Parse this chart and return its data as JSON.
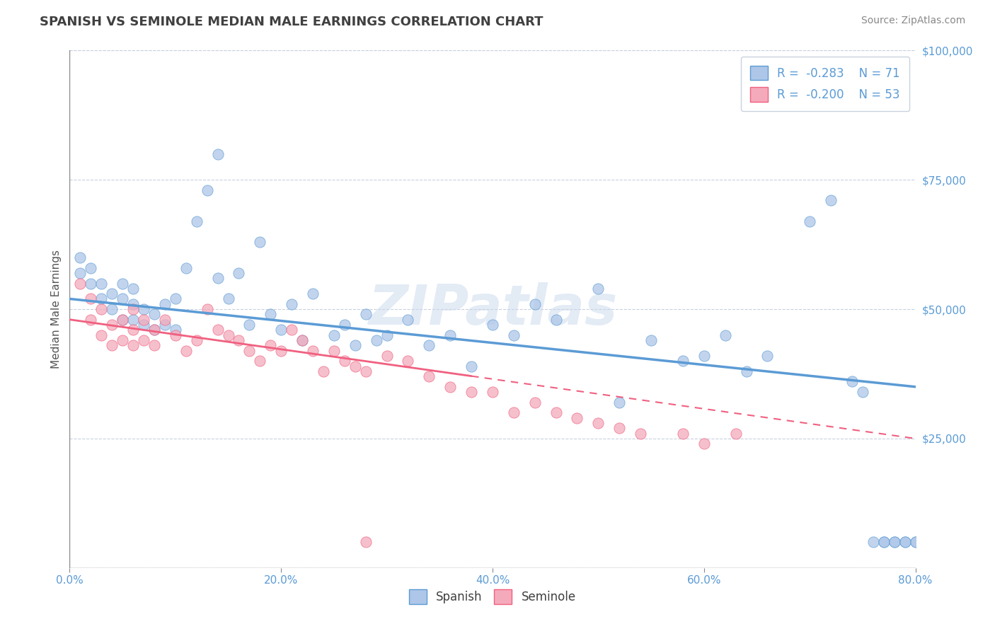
{
  "title": "SPANISH VS SEMINOLE MEDIAN MALE EARNINGS CORRELATION CHART",
  "source": "Source: ZipAtlas.com",
  "ylabel": "Median Male Earnings",
  "spanish_R": -0.283,
  "spanish_N": 71,
  "seminole_R": -0.2,
  "seminole_N": 53,
  "blue_color": "#5b9bd5",
  "blue_light": "#aec6e8",
  "pink_color": "#f06080",
  "pink_light": "#f4aabb",
  "title_color": "#404040",
  "axis_color": "#5b9bd5",
  "watermark_color": "#c8d8ec",
  "xlim": [
    0.0,
    0.8
  ],
  "ylim": [
    0,
    100000
  ],
  "yticks": [
    0,
    25000,
    50000,
    75000,
    100000
  ],
  "ytick_labels": [
    "",
    "$25,000",
    "$50,000",
    "$75,000",
    "$100,000"
  ],
  "xtick_labels": [
    "0.0%",
    "20.0%",
    "40.0%",
    "60.0%",
    "80.0%"
  ],
  "spanish_x": [
    0.01,
    0.01,
    0.02,
    0.02,
    0.03,
    0.03,
    0.04,
    0.04,
    0.05,
    0.05,
    0.05,
    0.06,
    0.06,
    0.06,
    0.07,
    0.07,
    0.08,
    0.08,
    0.09,
    0.09,
    0.1,
    0.1,
    0.11,
    0.12,
    0.13,
    0.14,
    0.14,
    0.15,
    0.16,
    0.17,
    0.18,
    0.19,
    0.2,
    0.21,
    0.22,
    0.23,
    0.25,
    0.26,
    0.27,
    0.28,
    0.29,
    0.3,
    0.32,
    0.34,
    0.36,
    0.38,
    0.4,
    0.42,
    0.44,
    0.46,
    0.5,
    0.52,
    0.55,
    0.58,
    0.6,
    0.62,
    0.64,
    0.66,
    0.7,
    0.72,
    0.74,
    0.75,
    0.76,
    0.77,
    0.77,
    0.78,
    0.78,
    0.79,
    0.79,
    0.8,
    0.8
  ],
  "spanish_y": [
    60000,
    57000,
    55000,
    58000,
    52000,
    55000,
    50000,
    53000,
    48000,
    52000,
    55000,
    48000,
    51000,
    54000,
    47000,
    50000,
    46000,
    49000,
    47000,
    51000,
    46000,
    52000,
    58000,
    67000,
    73000,
    80000,
    56000,
    52000,
    57000,
    47000,
    63000,
    49000,
    46000,
    51000,
    44000,
    53000,
    45000,
    47000,
    43000,
    49000,
    44000,
    45000,
    48000,
    43000,
    45000,
    39000,
    47000,
    45000,
    51000,
    48000,
    54000,
    32000,
    44000,
    40000,
    41000,
    45000,
    38000,
    41000,
    67000,
    71000,
    36000,
    34000,
    5000,
    5000,
    5000,
    5000,
    5000,
    5000,
    5000,
    5000,
    5000
  ],
  "seminole_x": [
    0.01,
    0.02,
    0.02,
    0.03,
    0.03,
    0.04,
    0.04,
    0.05,
    0.05,
    0.06,
    0.06,
    0.06,
    0.07,
    0.07,
    0.08,
    0.08,
    0.09,
    0.1,
    0.11,
    0.12,
    0.13,
    0.14,
    0.15,
    0.16,
    0.17,
    0.18,
    0.19,
    0.2,
    0.21,
    0.22,
    0.23,
    0.24,
    0.25,
    0.26,
    0.27,
    0.28,
    0.3,
    0.32,
    0.34,
    0.36,
    0.38,
    0.4,
    0.42,
    0.44,
    0.46,
    0.48,
    0.5,
    0.52,
    0.54,
    0.58,
    0.6,
    0.63,
    0.28
  ],
  "seminole_y": [
    55000,
    52000,
    48000,
    50000,
    45000,
    47000,
    43000,
    44000,
    48000,
    43000,
    46000,
    50000,
    44000,
    48000,
    43000,
    46000,
    48000,
    45000,
    42000,
    44000,
    50000,
    46000,
    45000,
    44000,
    42000,
    40000,
    43000,
    42000,
    46000,
    44000,
    42000,
    38000,
    42000,
    40000,
    39000,
    38000,
    41000,
    40000,
    37000,
    35000,
    34000,
    34000,
    30000,
    32000,
    30000,
    29000,
    28000,
    27000,
    26000,
    26000,
    24000,
    26000,
    5000
  ],
  "trend_blue_x0": 0.0,
  "trend_blue_y0": 52000,
  "trend_blue_x1": 0.8,
  "trend_blue_y1": 35000,
  "trend_pink_x0": 0.0,
  "trend_pink_y0": 48000,
  "trend_pink_x1": 0.8,
  "trend_pink_y1": 25000,
  "trend_pink_solid_end": 0.38,
  "legend_items": [
    "R =  -0.283   N = 71",
    "R =  -0.200   N = 53"
  ]
}
